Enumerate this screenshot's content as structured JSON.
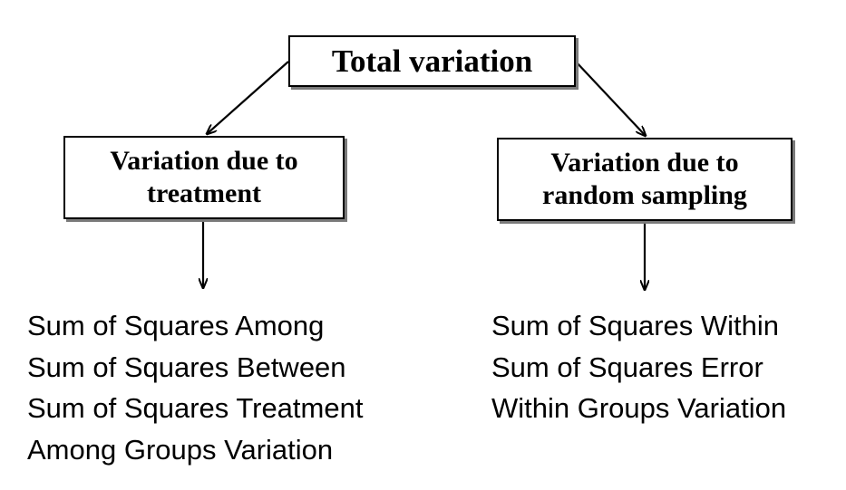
{
  "diagram": {
    "root": {
      "label": "Total variation"
    },
    "branches": [
      {
        "label_lines": [
          "Variation due to",
          "treatment"
        ],
        "terms": [
          "Sum of Squares Among",
          "Sum of Squares Between",
          "Sum of Squares Treatment",
          "Among Groups Variation"
        ]
      },
      {
        "label_lines": [
          "Variation due to",
          "random sampling"
        ],
        "terms": [
          "Sum of Squares Within",
          "Sum of Squares Error",
          "Within Groups Variation"
        ]
      }
    ]
  }
}
